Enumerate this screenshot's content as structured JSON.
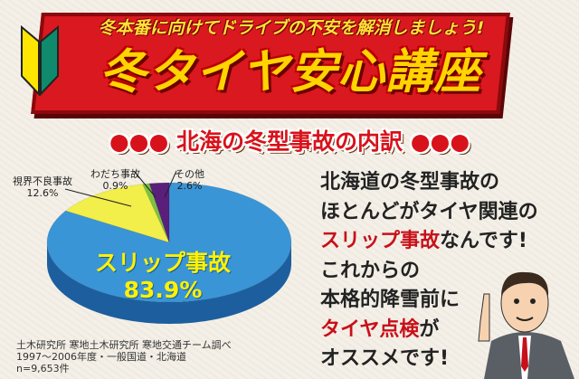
{
  "banner": {
    "subtitle": "冬本番に向けてドライブの不安を解消しましょう!",
    "title": "冬タイヤ安心講座",
    "colors": {
      "red": "#d9181f",
      "yellow": "#ffd400"
    }
  },
  "heading": "●●● 北海の冬型事故の内訳 ●●●",
  "chart_data": {
    "type": "pie",
    "title": "北海の冬型事故の内訳",
    "slices": [
      {
        "label": "スリップ事故",
        "value": 83.9,
        "display": "83.9%",
        "color": "#3a95d6"
      },
      {
        "label": "視界不良事故",
        "value": 12.6,
        "display": "12.6%",
        "color": "#f2ee4a"
      },
      {
        "label": "わだち事故",
        "value": 0.9,
        "display": "0.9%",
        "color": "#7cc242"
      },
      {
        "label": "その他",
        "value": 2.6,
        "display": "2.6%",
        "color": "#5a1f7a"
      }
    ]
  },
  "source": [
    "土木研究所 寒地土木研究所 寒地交通チーム調べ",
    "1997〜2006年度・一般国道・北海道",
    "n=9,653件"
  ],
  "message": {
    "l1": "北海道の冬型事故の",
    "l2": "ほとんどがタイヤ関連の",
    "l3a": "スリップ事故",
    "l3b": "なんです!",
    "l4": "これからの",
    "l5": "本格的降雪前に",
    "l6a": "タイヤ点検",
    "l6b": "が",
    "l7": "オススメです!"
  }
}
